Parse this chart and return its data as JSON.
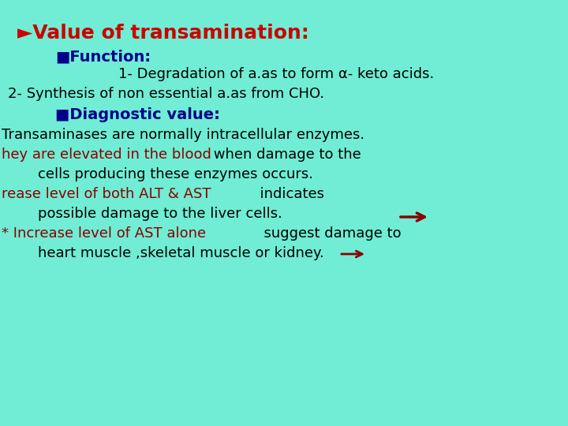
{
  "background_color": "#70EDD4",
  "title": "►Value of transamination:",
  "title_color": "#CC0000",
  "title_fontsize": 18,
  "function_header": "■Function:",
  "function_header_color": "#00008B",
  "function_header_fontsize": 14,
  "line1": "1- Degradation of a.as to form α- keto acids.",
  "line1_color": "#000000",
  "line1_fontsize": 13,
  "line2": "2- Synthesis of non essential a.as from CHO.",
  "line2_color": "#000000",
  "line2_fontsize": 13,
  "diag_header": "■Diagnostic value:",
  "diag_header_color": "#00008B",
  "diag_header_fontsize": 14,
  "diag1": "Transaminases are normally intracellular enzymes.",
  "diag1_color": "#000000",
  "diag1_fontsize": 13,
  "diag2a": "hey are elevated in the blood",
  "diag2a_color": "#8B0000",
  "diag2b": " when damage to the",
  "diag2b_color": "#000000",
  "diag2_fontsize": 13,
  "diag3": "        cells producing these enzymes occurs.",
  "diag3_color": "#000000",
  "diag3_fontsize": 13,
  "diag4a": "rease level of both ALT & AST",
  "diag4a_color": "#8B0000",
  "diag4b": "      indicates",
  "diag4b_color": "#000000",
  "diag4_fontsize": 13,
  "diag5": "        possible damage to the liver cells.",
  "diag5_color": "#000000",
  "diag5_fontsize": 13,
  "diag6a": "* Increase level of AST alone",
  "diag6a_color": "#8B0000",
  "diag6b": "      suggest damage to",
  "diag6b_color": "#000000",
  "diag6_fontsize": 13,
  "diag7": "        heart muscle ,skeletal muscle or kidney.",
  "diag7_color": "#000000",
  "diag7_fontsize": 13,
  "arrow_color": "#8B0000",
  "font_family": "DejaVu Sans"
}
